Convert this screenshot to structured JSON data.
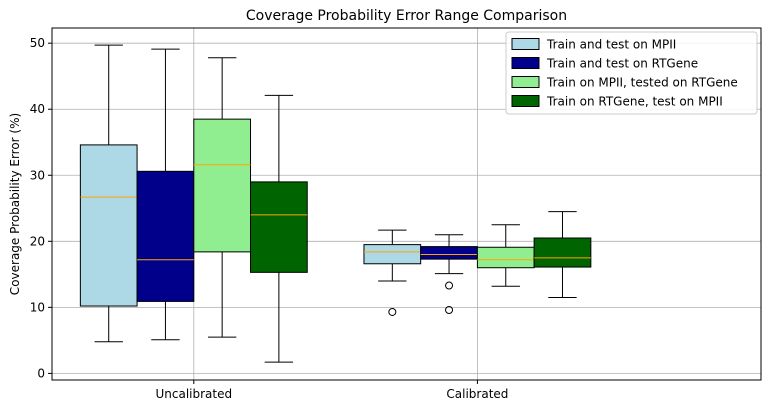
{
  "chart_data": {
    "type": "box",
    "title": "Coverage Probability Error Range Comparison",
    "xlabel": "",
    "ylabel": "Coverage Probability Error (%)",
    "ylim": [
      -1,
      52.3
    ],
    "yticks": [
      0,
      10,
      20,
      30,
      40,
      50
    ],
    "grid": true,
    "legend_position": "top-right",
    "categories": [
      "Uncalibrated",
      "Calibrated"
    ],
    "series": [
      {
        "name": "Train and test on MPII",
        "color": "#add8e6",
        "boxes": [
          {
            "whislo": 4.8,
            "q1": 10.2,
            "med": 26.7,
            "q3": 34.6,
            "whishi": 49.7,
            "fliers": []
          },
          {
            "whislo": 14.0,
            "q1": 16.6,
            "med": 18.4,
            "q3": 19.5,
            "whishi": 21.7,
            "fliers": [
              9.3
            ]
          }
        ]
      },
      {
        "name": "Train and test on RTGene",
        "color": "#00008b",
        "boxes": [
          {
            "whislo": 5.1,
            "q1": 10.9,
            "med": 17.2,
            "q3": 30.6,
            "whishi": 49.1,
            "fliers": []
          },
          {
            "whislo": 15.1,
            "q1": 17.3,
            "med": 18.0,
            "q3": 19.2,
            "whishi": 21.0,
            "fliers": [
              13.3,
              9.6
            ]
          }
        ]
      },
      {
        "name": "Train on MPII, tested on RTGene",
        "color": "#90ee90",
        "boxes": [
          {
            "whislo": 5.5,
            "q1": 18.4,
            "med": 31.6,
            "q3": 38.5,
            "whishi": 47.8,
            "fliers": []
          },
          {
            "whislo": 13.2,
            "q1": 16.0,
            "med": 17.2,
            "q3": 19.1,
            "whishi": 22.5,
            "fliers": []
          }
        ]
      },
      {
        "name": "Train on RTGene, test on MPII",
        "color": "#006400",
        "boxes": [
          {
            "whislo": 1.7,
            "q1": 15.3,
            "med": 24.0,
            "q3": 29.0,
            "whishi": 42.1,
            "fliers": []
          },
          {
            "whislo": 11.5,
            "q1": 16.1,
            "med": 17.5,
            "q3": 20.5,
            "whishi": 24.5,
            "fliers": []
          }
        ]
      }
    ],
    "median_color": "#ffa500"
  }
}
